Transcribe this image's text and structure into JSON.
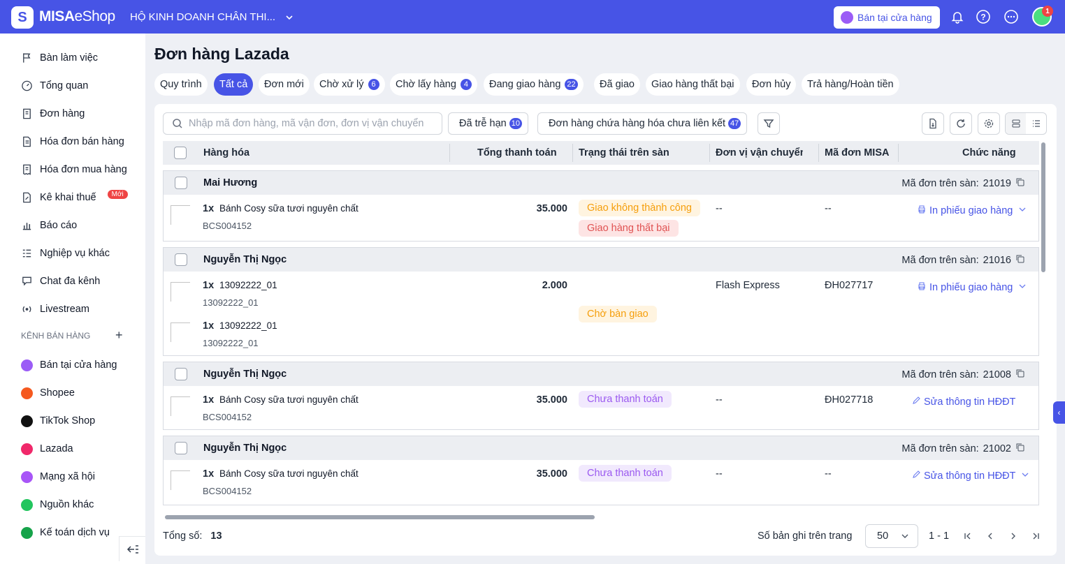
{
  "topbar": {
    "brand_bold": "MISA",
    "brand_light": "eShop",
    "store_name": "HỘ KINH DOANH CHÂN THI...",
    "sell_button": "Bán tại cửa hàng",
    "notif_count": "1"
  },
  "sidebar": {
    "items": [
      {
        "label": "Bàn làm việc",
        "icon": "flag-icon"
      },
      {
        "label": "Tổng quan",
        "icon": "gauge-icon"
      },
      {
        "label": "Đơn hàng",
        "icon": "order-icon"
      },
      {
        "label": "Hóa đơn bán hàng",
        "icon": "invoice-icon"
      },
      {
        "label": "Hóa đơn mua hàng",
        "icon": "receipt-icon"
      },
      {
        "label": "Kê khai thuế",
        "icon": "tax-icon",
        "badge": "Mới"
      },
      {
        "label": "Báo cáo",
        "icon": "chart-icon"
      },
      {
        "label": "Nghiệp vụ khác",
        "icon": "list-icon"
      },
      {
        "label": "Chat đa kênh",
        "icon": "chat-icon"
      },
      {
        "label": "Livestream",
        "icon": "live-icon"
      }
    ],
    "section_label": "KÊNH BÁN HÀNG",
    "channels": [
      {
        "label": "Bán tại cửa hàng",
        "color": "#9b5cf6"
      },
      {
        "label": "Shopee",
        "color": "#f5591f"
      },
      {
        "label": "TikTok Shop",
        "color": "#111111"
      },
      {
        "label": "Lazada",
        "color": "#f0286a"
      },
      {
        "label": "Mạng xã hội",
        "color": "#a855f7"
      },
      {
        "label": "Nguồn khác",
        "color": "#22c55e"
      },
      {
        "label": "Kế toán dịch vụ",
        "color": "#16a34a"
      }
    ]
  },
  "page": {
    "title": "Đơn hàng Lazada",
    "tabs": [
      {
        "label": "Quy trình",
        "count": ""
      },
      {
        "label": "Tất cả",
        "count": ""
      },
      {
        "label": "Đơn mới",
        "count": ""
      },
      {
        "label": "Chờ xử lý",
        "count": "6"
      },
      {
        "label": "Chờ lấy hàng",
        "count": "4"
      },
      {
        "label": "Đang giao hàng",
        "count": "22"
      },
      {
        "label": "Đã giao",
        "count": ""
      },
      {
        "label": "Giao hàng thất bại",
        "count": ""
      },
      {
        "label": "Đơn hủy",
        "count": ""
      },
      {
        "label": "Trả hàng/Hoàn tiền",
        "count": ""
      }
    ],
    "active_tab": "Tất cả",
    "search_placeholder": "Nhập mã đơn hàng, mã vận đơn, đơn vị vận chuyển",
    "filter_overdue": {
      "label": "Đã trễ hạn",
      "count": "10"
    },
    "filter_unlinked": {
      "label": "Đơn hàng chứa hàng hóa chưa liên kết",
      "count": "47"
    }
  },
  "table": {
    "headers": {
      "product": "Hàng hóa",
      "total": "Tổng thanh toán",
      "status": "Trạng thái trên sàn",
      "carrier": "Đơn vị vận chuyển",
      "misa_code": "Mã đơn MISA eS",
      "actions": "Chức năng"
    },
    "code_label": "Mã đơn trên sàn:",
    "orders": [
      {
        "customer": "Mai Hương",
        "code": "21019",
        "items": [
          {
            "qty": "1x",
            "name": "Bánh Cosy sữa tươi nguyên chất",
            "sku": "BCS004152"
          }
        ],
        "total": "35.000",
        "statuses": [
          {
            "text": "Giao không thành công",
            "tone": "orange"
          },
          {
            "text": "Giao hàng thất bại",
            "tone": "red"
          }
        ],
        "carrier": "--",
        "misa_code": "--",
        "action": "In phiếu giao hàng"
      },
      {
        "customer": "Nguyễn Thị Ngọc",
        "code": "21016",
        "items": [
          {
            "qty": "1x",
            "name": "13092222_01",
            "sku": "13092222_01"
          },
          {
            "qty": "1x",
            "name": "13092222_01",
            "sku": "13092222_01"
          }
        ],
        "total": "2.000",
        "statuses": [
          {
            "text": "Chờ bàn giao",
            "tone": "orange"
          }
        ],
        "carrier": "Flash Express",
        "misa_code": "ĐH027717",
        "action": "In phiếu giao hàng"
      },
      {
        "customer": "Nguyễn Thị Ngọc",
        "code": "21008",
        "items": [
          {
            "qty": "1x",
            "name": "Bánh Cosy sữa tươi nguyên chất",
            "sku": "BCS004152"
          }
        ],
        "total": "35.000",
        "statuses": [
          {
            "text": "Chưa thanh toán",
            "tone": "purple"
          }
        ],
        "carrier": "--",
        "misa_code": "ĐH027718",
        "action": "Sửa thông tin HĐĐT"
      },
      {
        "customer": "Nguyễn Thị Ngọc",
        "code": "21002",
        "items": [
          {
            "qty": "1x",
            "name": "Bánh Cosy sữa tươi nguyên chất",
            "sku": "BCS004152"
          }
        ],
        "total": "35.000",
        "statuses": [
          {
            "text": "Chưa thanh toán",
            "tone": "purple"
          }
        ],
        "carrier": "--",
        "misa_code": "--",
        "action": "Sửa thông tin HĐĐT"
      }
    ]
  },
  "footer": {
    "total_label": "Tổng số:",
    "total_value": "13",
    "per_page_label": "Số bản ghi trên trang",
    "per_page_value": "50",
    "range": "1 - 1"
  }
}
